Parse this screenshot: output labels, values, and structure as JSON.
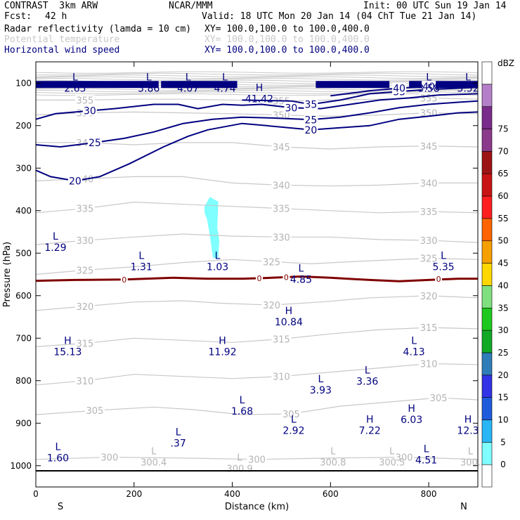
{
  "header": {
    "model": "CONTRAST  3km ARW",
    "org": "NCAR/MMM",
    "init": "Init: 00 UTC Sun 19 Jan 14",
    "fcst_label": "Fcst:",
    "fcst_value": "42 h",
    "valid": "Valid: 18 UTC Mon 20 Jan 14 (04 ChT Tue 21 Jan 14)",
    "fields": [
      {
        "name": "Radar reflectivity (lamda = 10 cm)",
        "xy": "XY= 100.0,100.0 to 100.0,400.0",
        "color": "#000000"
      },
      {
        "name": "Potential temperature",
        "xy": "XY= 100.0,100.0 to 100.0,400.0",
        "color": "#c8c8c8"
      },
      {
        "name": "Horizontal wind speed",
        "xy": "XY= 100.0,100.0 to 100.0,400.0",
        "color": "#000080"
      }
    ]
  },
  "chart_data": {
    "type": "cross-section",
    "xlabel": "Distance (km)",
    "ylabel": "Pressure (hPa)",
    "xlim": [
      0,
      900
    ],
    "ylim": [
      1050,
      50
    ],
    "x_ticks": [
      "0",
      "200",
      "400",
      "600",
      "800"
    ],
    "x_tick_values": [
      0,
      200,
      400,
      600,
      800
    ],
    "y_ticks": [
      "100",
      "200",
      "300",
      "400",
      "500",
      "600",
      "700",
      "800",
      "900",
      "1000"
    ],
    "y_tick_values": [
      100,
      200,
      300,
      400,
      500,
      600,
      700,
      800,
      900,
      1000
    ],
    "left_end_label": "S",
    "right_end_label": "N",
    "colorbar": {
      "unit": "dBZ",
      "levels": [
        "0",
        "5",
        "10",
        "15",
        "20",
        "25",
        "30",
        "35",
        "40",
        "45",
        "50",
        "55",
        "60",
        "65",
        "70",
        "75"
      ],
      "colors": [
        "#ffffff",
        "#7fffff",
        "#29b6f6",
        "#1e5bdc",
        "#3232e6",
        "#2e7db8",
        "#11a826",
        "#1ec81e",
        "#80e080",
        "#ffd700",
        "#f5a000",
        "#ff6400",
        "#ff1e1e",
        "#c81414",
        "#9c1414",
        "#8b3a8b",
        "#7a2a8a",
        "#b47fc8",
        "#ffffff"
      ]
    },
    "wind_speed_contours": [
      {
        "label": "20",
        "color": "#000080",
        "points": [
          [
            0,
            305
          ],
          [
            30,
            320
          ],
          [
            80,
            330
          ],
          [
            130,
            320
          ],
          [
            190,
            290
          ],
          [
            260,
            250
          ],
          [
            310,
            225
          ],
          [
            350,
            210
          ],
          [
            420,
            195
          ],
          [
            470,
            200
          ],
          [
            560,
            210
          ],
          [
            620,
            205
          ],
          [
            680,
            200
          ],
          [
            740,
            185
          ],
          [
            800,
            178
          ],
          [
            860,
            170
          ],
          [
            900,
            168
          ]
        ]
      },
      {
        "label": "25",
        "color": "#000080",
        "points": [
          [
            0,
            245
          ],
          [
            50,
            250
          ],
          [
            120,
            240
          ],
          [
            180,
            230
          ],
          [
            240,
            215
          ],
          [
            300,
            195
          ],
          [
            360,
            185
          ],
          [
            420,
            180
          ],
          [
            480,
            182
          ],
          [
            560,
            186
          ],
          [
            620,
            180
          ],
          [
            680,
            170
          ],
          [
            740,
            158
          ],
          [
            800,
            150
          ],
          [
            860,
            145
          ],
          [
            900,
            142
          ]
        ]
      },
      {
        "label": "30",
        "color": "#000080",
        "points": [
          [
            0,
            185
          ],
          [
            40,
            172
          ],
          [
            110,
            165
          ],
          [
            160,
            160
          ],
          [
            240,
            150
          ],
          [
            290,
            150
          ],
          [
            330,
            160
          ],
          [
            380,
            150
          ],
          [
            420,
            152
          ],
          [
            460,
            150
          ],
          [
            520,
            158
          ],
          [
            580,
            160
          ],
          [
            640,
            150
          ],
          [
            700,
            140
          ],
          [
            760,
            135
          ],
          [
            820,
            128
          ],
          [
            900,
            125
          ]
        ]
      },
      {
        "label": "35",
        "color": "#000080",
        "points": [
          [
            420,
            140
          ],
          [
            520,
            142
          ],
          [
            560,
            150
          ],
          [
            620,
            140
          ],
          [
            680,
            125
          ],
          [
            740,
            120
          ],
          [
            800,
            115
          ],
          [
            860,
            112
          ],
          [
            900,
            110
          ]
        ]
      },
      {
        "label": "40",
        "color": "#000080",
        "points": [
          [
            600,
            130
          ],
          [
            680,
            118
          ],
          [
            740,
            112
          ],
          [
            800,
            108
          ],
          [
            860,
            106
          ],
          [
            900,
            105
          ]
        ]
      }
    ],
    "theta_contours": [
      {
        "label": "300",
        "points": [
          [
            0,
            985
          ],
          [
            150,
            980
          ],
          [
            300,
            982
          ],
          [
            450,
            985
          ],
          [
            600,
            982
          ],
          [
            750,
            980
          ],
          [
            900,
            985
          ]
        ]
      },
      {
        "label": "305",
        "points": [
          [
            0,
            880
          ],
          [
            120,
            870
          ],
          [
            240,
            862
          ],
          [
            320,
            868
          ],
          [
            420,
            880
          ],
          [
            520,
            878
          ],
          [
            620,
            860
          ],
          [
            720,
            850
          ],
          [
            820,
            840
          ],
          [
            900,
            845
          ]
        ]
      },
      {
        "label": "310",
        "points": [
          [
            0,
            810
          ],
          [
            100,
            800
          ],
          [
            200,
            785
          ],
          [
            300,
            790
          ],
          [
            400,
            795
          ],
          [
            500,
            790
          ],
          [
            600,
            780
          ],
          [
            700,
            770
          ],
          [
            800,
            760
          ],
          [
            900,
            762
          ]
        ]
      },
      {
        "label": "315",
        "points": [
          [
            0,
            720
          ],
          [
            100,
            712
          ],
          [
            200,
            700
          ],
          [
            300,
            705
          ],
          [
            400,
            710
          ],
          [
            500,
            702
          ],
          [
            600,
            690
          ],
          [
            700,
            680
          ],
          [
            800,
            675
          ],
          [
            900,
            678
          ]
        ]
      },
      {
        "label": "320",
        "points": [
          [
            0,
            635
          ],
          [
            100,
            625
          ],
          [
            200,
            615
          ],
          [
            300,
            612
          ],
          [
            380,
            618
          ],
          [
            480,
            622
          ],
          [
            580,
            615
          ],
          [
            680,
            605
          ],
          [
            800,
            600
          ],
          [
            900,
            605
          ]
        ]
      },
      {
        "label": "325",
        "points": [
          [
            0,
            550
          ],
          [
            100,
            540
          ],
          [
            200,
            532
          ],
          [
            300,
            522
          ],
          [
            400,
            515
          ],
          [
            480,
            520
          ],
          [
            560,
            525
          ],
          [
            680,
            518
          ],
          [
            800,
            512
          ],
          [
            900,
            515
          ]
        ]
      },
      {
        "label": "330",
        "points": [
          [
            0,
            480
          ],
          [
            100,
            470
          ],
          [
            200,
            462
          ],
          [
            300,
            455
          ],
          [
            400,
            460
          ],
          [
            500,
            462
          ],
          [
            600,
            462
          ],
          [
            700,
            468
          ],
          [
            800,
            470
          ],
          [
            900,
            475
          ]
        ]
      },
      {
        "label": "335",
        "points": [
          [
            0,
            405
          ],
          [
            100,
            395
          ],
          [
            200,
            380
          ],
          [
            300,
            385
          ],
          [
            400,
            390
          ],
          [
            500,
            395
          ],
          [
            600,
            400
          ],
          [
            700,
            405
          ],
          [
            800,
            402
          ],
          [
            900,
            405
          ]
        ]
      },
      {
        "label": "340",
        "points": [
          [
            0,
            330
          ],
          [
            100,
            325
          ],
          [
            200,
            320
          ],
          [
            300,
            320
          ],
          [
            400,
            335
          ],
          [
            500,
            340
          ],
          [
            600,
            342
          ],
          [
            700,
            340
          ],
          [
            800,
            335
          ],
          [
            900,
            335
          ]
        ]
      },
      {
        "label": "345",
        "points": [
          [
            0,
            240
          ],
          [
            100,
            240
          ],
          [
            200,
            245
          ],
          [
            300,
            240
          ],
          [
            400,
            240
          ],
          [
            500,
            250
          ],
          [
            600,
            255
          ],
          [
            700,
            250
          ],
          [
            800,
            248
          ],
          [
            900,
            250
          ]
        ]
      },
      {
        "label": "350",
        "points": [
          [
            0,
            175
          ],
          [
            100,
            170
          ],
          [
            200,
            168
          ],
          [
            300,
            170
          ],
          [
            400,
            172
          ],
          [
            500,
            175
          ],
          [
            600,
            178
          ],
          [
            700,
            175
          ],
          [
            800,
            170
          ],
          [
            900,
            172
          ]
        ]
      },
      {
        "label": "355",
        "points": [
          [
            0,
            140
          ],
          [
            100,
            140
          ],
          [
            200,
            138
          ],
          [
            300,
            138
          ],
          [
            400,
            140
          ],
          [
            500,
            142
          ],
          [
            600,
            140
          ],
          [
            700,
            138
          ],
          [
            800,
            135
          ],
          [
            900,
            138
          ]
        ]
      }
    ],
    "freezing_line": {
      "label": "0",
      "color": "#800000",
      "points": [
        [
          0,
          565
        ],
        [
          80,
          563
        ],
        [
          180,
          562
        ],
        [
          280,
          558
        ],
        [
          350,
          560
        ],
        [
          420,
          560
        ],
        [
          480,
          558
        ],
        [
          540,
          555
        ],
        [
          600,
          558
        ],
        [
          680,
          563
        ],
        [
          740,
          566
        ],
        [
          800,
          563
        ],
        [
          860,
          560
        ],
        [
          900,
          560
        ]
      ]
    },
    "reflectivity_blob": {
      "level": "5",
      "color": "#7fffff",
      "points": [
        [
          345,
          390
        ],
        [
          355,
          370
        ],
        [
          370,
          380
        ],
        [
          368,
          440
        ],
        [
          372,
          470
        ],
        [
          370,
          510
        ],
        [
          362,
          510
        ],
        [
          356,
          460
        ],
        [
          350,
          420
        ],
        [
          345,
          405
        ]
      ]
    },
    "extrema_labels": [
      {
        "type": "L",
        "value": "2.65",
        "x": 80,
        "p": 100
      },
      {
        "type": "L",
        "value": "3.86",
        "x": 230,
        "p": 100
      },
      {
        "type": "L",
        "value": "4.07",
        "x": 310,
        "p": 100
      },
      {
        "type": "L",
        "value": "4.74",
        "x": 385,
        "p": 100
      },
      {
        "type": "H",
        "value": "41.42",
        "x": 455,
        "p": 125
      },
      {
        "type": "L",
        "value": "3.58",
        "x": 800,
        "p": 100
      },
      {
        "type": "L",
        "value": "3.52",
        "x": 880,
        "p": 100
      },
      {
        "type": "L",
        "value": "1.29",
        "x": 40,
        "p": 475
      },
      {
        "type": "L",
        "value": "1.31",
        "x": 215,
        "p": 520
      },
      {
        "type": "L",
        "value": "1.03",
        "x": 370,
        "p": 520
      },
      {
        "type": "L",
        "value": "4.85",
        "x": 540,
        "p": 550
      },
      {
        "type": "L",
        "value": "5.35",
        "x": 830,
        "p": 520
      },
      {
        "type": "H",
        "value": "10.84",
        "x": 515,
        "p": 650
      },
      {
        "type": "H",
        "value": "15.13",
        "x": 65,
        "p": 720
      },
      {
        "type": "H",
        "value": "11.92",
        "x": 380,
        "p": 720
      },
      {
        "type": "L",
        "value": "4.13",
        "x": 770,
        "p": 720
      },
      {
        "type": "L",
        "value": "3.36",
        "x": 675,
        "p": 790
      },
      {
        "type": "L",
        "value": "3.93",
        "x": 580,
        "p": 810
      },
      {
        "type": "L",
        "value": "1.68",
        "x": 420,
        "p": 860
      },
      {
        "type": "L",
        "value": "2.92",
        "x": 525,
        "p": 905
      },
      {
        "type": "H",
        "value": "7.22",
        "x": 680,
        "p": 905
      },
      {
        "type": "H",
        "value": "6.03",
        "x": 765,
        "p": 880
      },
      {
        "type": "H",
        "value": "12.3",
        "x": 880,
        "p": 905
      },
      {
        "type": "L",
        "value": ".37",
        "x": 290,
        "p": 935
      },
      {
        "type": "L",
        "value": "1.60",
        "x": 45,
        "p": 970
      },
      {
        "type": "L",
        "value": "4.51",
        "x": 795,
        "p": 975
      }
    ],
    "gray_labels": [
      {
        "value": "300.4",
        "x": 240,
        "p": 980
      },
      {
        "value": "300.9",
        "x": 415,
        "p": 995
      },
      {
        "value": "300.8",
        "x": 605,
        "p": 980
      },
      {
        "value": "300.5",
        "x": 725,
        "p": 980
      },
      {
        "value": "300.",
        "x": 885,
        "p": 980
      }
    ]
  }
}
